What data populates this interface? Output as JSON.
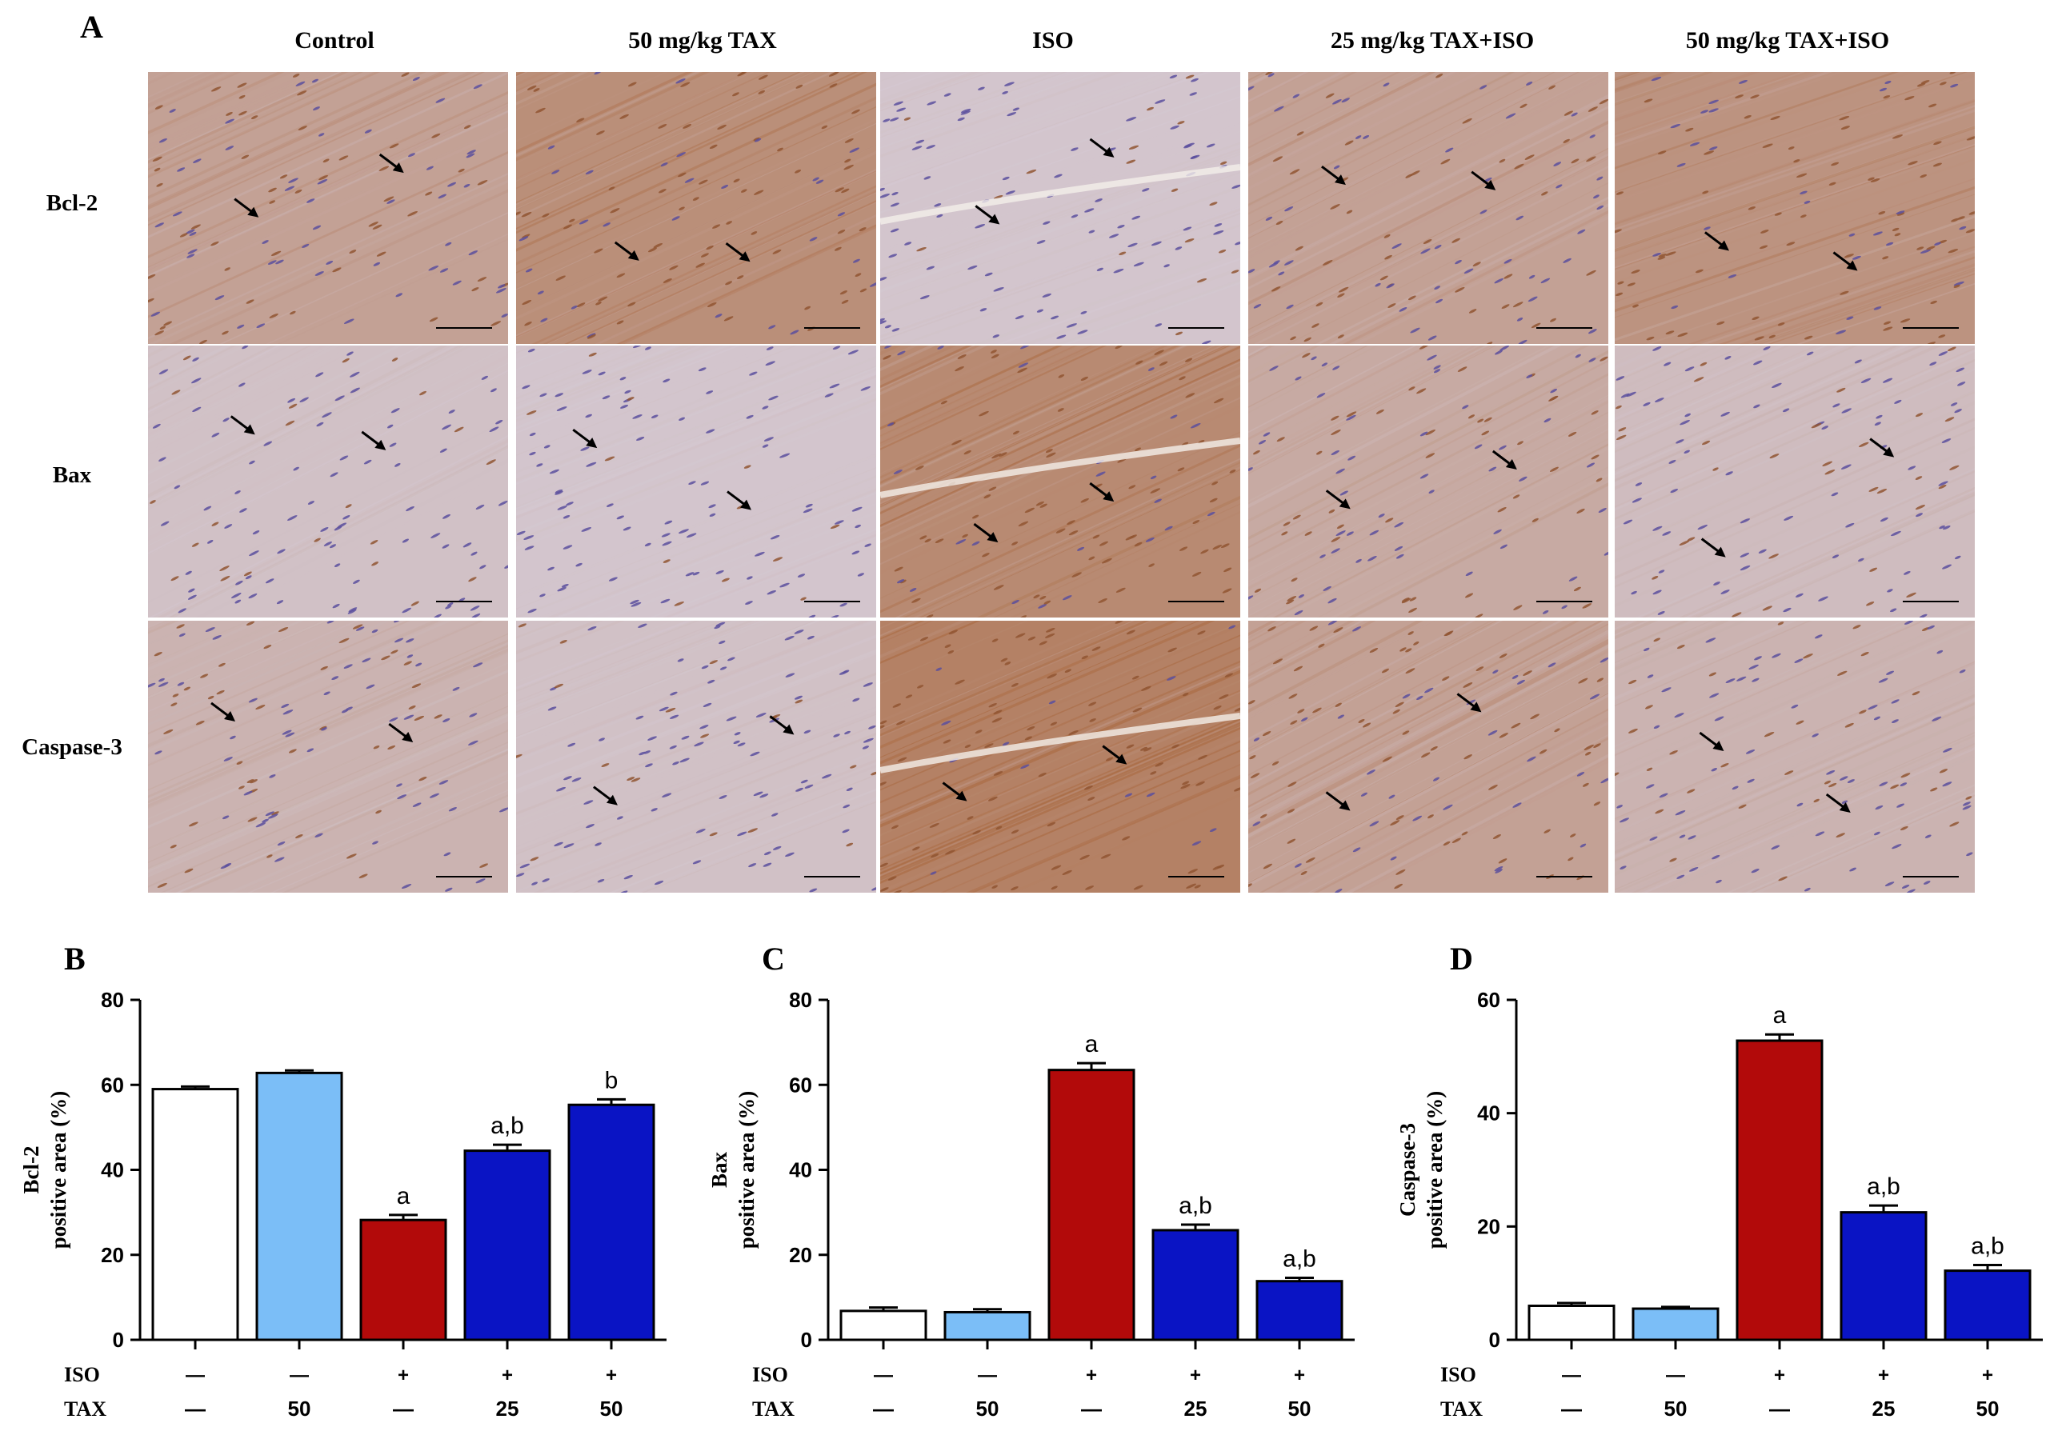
{
  "panel_a": {
    "letter": "A",
    "columns": [
      "Control",
      "50 mg/kg TAX",
      "ISO",
      "25 mg/kg TAX+ISO",
      "50 mg/kg TAX+ISO"
    ],
    "rows": [
      "Bcl-2",
      "Bax",
      "Caspase-3"
    ],
    "stain_level": [
      [
        0.55,
        0.75,
        0.15,
        0.55,
        0.7
      ],
      [
        0.2,
        0.15,
        0.8,
        0.45,
        0.25
      ],
      [
        0.35,
        0.2,
        0.9,
        0.55,
        0.35
      ]
    ],
    "colors": {
      "brown": "#a9683e",
      "background": "#d9d3e2",
      "nuclei": "#5a4f9e"
    }
  },
  "chart_data": [
    {
      "panel_letter": "B",
      "type": "bar",
      "categories": [
        "1",
        "2",
        "3",
        "4",
        "5"
      ],
      "values": [
        59,
        62.8,
        28.2,
        44.5,
        55.3
      ],
      "errors": [
        0.6,
        0.6,
        1.2,
        1.4,
        1.3
      ],
      "annotations": [
        "",
        "",
        "a",
        "a,b",
        "b"
      ],
      "ylabel_line1": "Bcl-2",
      "ylabel_line2": "positive area (%)",
      "ylim": [
        0,
        80
      ],
      "yticks": [
        0,
        20,
        40,
        60,
        80
      ],
      "iso_labels": [
        "ISO",
        "—",
        "—",
        "+",
        "+",
        "+"
      ],
      "tax_labels": [
        "TAX",
        "—",
        "50",
        "—",
        "25",
        "50"
      ],
      "colors": [
        "#ffffff",
        "#7bbef7",
        "#b20a0a",
        "#0a14c4",
        "#0a14c4"
      ]
    },
    {
      "panel_letter": "C",
      "type": "bar",
      "categories": [
        "1",
        "2",
        "3",
        "4",
        "5"
      ],
      "values": [
        6.8,
        6.5,
        63.5,
        25.8,
        13.8
      ],
      "errors": [
        0.8,
        0.7,
        1.6,
        1.3,
        0.8
      ],
      "annotations": [
        "",
        "",
        "a",
        "a,b",
        "a,b"
      ],
      "ylabel_line1": "Bax",
      "ylabel_line2": "positive area (%)",
      "ylim": [
        0,
        80
      ],
      "yticks": [
        0,
        20,
        40,
        60,
        80
      ],
      "iso_labels": [
        "ISO",
        "—",
        "—",
        "+",
        "+",
        "+"
      ],
      "tax_labels": [
        "TAX",
        "—",
        "50",
        "—",
        "25",
        "50"
      ],
      "colors": [
        "#ffffff",
        "#7bbef7",
        "#b20a0a",
        "#0a14c4",
        "#0a14c4"
      ]
    },
    {
      "panel_letter": "D",
      "type": "bar",
      "categories": [
        "1",
        "2",
        "3",
        "4",
        "5"
      ],
      "values": [
        6.0,
        5.5,
        52.8,
        22.5,
        12.2
      ],
      "errors": [
        0.5,
        0.3,
        1.1,
        1.2,
        1.0
      ],
      "annotations": [
        "",
        "",
        "a",
        "a,b",
        "a,b"
      ],
      "ylabel_line1": "Caspase-3",
      "ylabel_line2": "positive area (%)",
      "ylim": [
        0,
        60
      ],
      "yticks": [
        0,
        20,
        40,
        60
      ],
      "iso_labels": [
        "ISO",
        "—",
        "—",
        "+",
        "+",
        "+"
      ],
      "tax_labels": [
        "TAX",
        "—",
        "50",
        "—",
        "25",
        "50"
      ],
      "colors": [
        "#ffffff",
        "#7bbef7",
        "#b20a0a",
        "#0a14c4",
        "#0a14c4"
      ]
    }
  ]
}
